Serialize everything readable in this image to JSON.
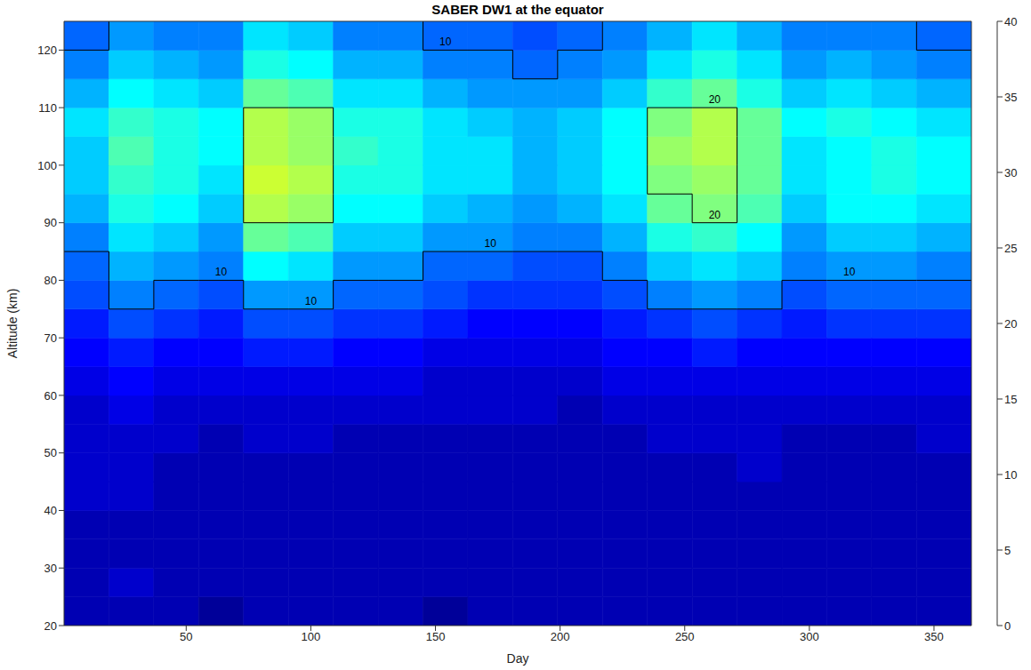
{
  "chart_data": {
    "type": "heatmap",
    "title": "SABER DW1 at the equator",
    "x_label": "Day",
    "y_label": "Altitude (km)",
    "xlim": [
      1,
      365
    ],
    "xticks": [
      50,
      100,
      150,
      200,
      250,
      300,
      350
    ],
    "ylim": [
      20,
      125
    ],
    "yticks": [
      20,
      30,
      40,
      50,
      60,
      70,
      80,
      90,
      100,
      110,
      120
    ],
    "x_edges": [
      1,
      19,
      37,
      55,
      73,
      91,
      109,
      127,
      145,
      163,
      181,
      199,
      217,
      235,
      253,
      271,
      289,
      307,
      325,
      343,
      365
    ],
    "y_edges": [
      20,
      25,
      30,
      35,
      40,
      45,
      50,
      55,
      60,
      65,
      70,
      75,
      80,
      85,
      90,
      95,
      100,
      105,
      110,
      115,
      120,
      125
    ],
    "values": [
      [
        2,
        2,
        2,
        1,
        2,
        2,
        2,
        2,
        1,
        2,
        2,
        2,
        2,
        2,
        2,
        2,
        2,
        2,
        2,
        2
      ],
      [
        2,
        3,
        2,
        2,
        2,
        2,
        2,
        2,
        2,
        2,
        2,
        2,
        2,
        2,
        2,
        2,
        2,
        2,
        2,
        2
      ],
      [
        2,
        2,
        2,
        2,
        2,
        2,
        2,
        2,
        2,
        2,
        2,
        2,
        2,
        2,
        2,
        2,
        2,
        2,
        2,
        2
      ],
      [
        2,
        2,
        2,
        2,
        2,
        2,
        2,
        2,
        2,
        2,
        2,
        2,
        2,
        2,
        2,
        2,
        2,
        2,
        2,
        2
      ],
      [
        3,
        3,
        2,
        2,
        2,
        2,
        2,
        2,
        2,
        2,
        2,
        2,
        2,
        2,
        2,
        2,
        2,
        2,
        2,
        2
      ],
      [
        3,
        3,
        2,
        2,
        2,
        2,
        2,
        2,
        2,
        2,
        2,
        2,
        2,
        2,
        2,
        3,
        2,
        2,
        2,
        2
      ],
      [
        3,
        3,
        3,
        2,
        3,
        3,
        2,
        2,
        2,
        2,
        2,
        2,
        2,
        3,
        3,
        3,
        2,
        2,
        2,
        3
      ],
      [
        3,
        4,
        3,
        3,
        3,
        3,
        3,
        3,
        3,
        3,
        3,
        2,
        3,
        3,
        3,
        3,
        3,
        3,
        3,
        3
      ],
      [
        4,
        5,
        4,
        4,
        4,
        4,
        4,
        4,
        3,
        3,
        3,
        3,
        4,
        4,
        4,
        4,
        4,
        4,
        4,
        4
      ],
      [
        5,
        6,
        5,
        5,
        6,
        6,
        5,
        5,
        4,
        4,
        4,
        4,
        5,
        5,
        6,
        5,
        5,
        5,
        5,
        5
      ],
      [
        6,
        8,
        7,
        6,
        8,
        8,
        7,
        7,
        6,
        5,
        5,
        5,
        6,
        7,
        8,
        7,
        6,
        7,
        7,
        7
      ],
      [
        8,
        10,
        9,
        8,
        11,
        11,
        9,
        9,
        8,
        7,
        7,
        7,
        8,
        10,
        11,
        10,
        8,
        9,
        9,
        9
      ],
      [
        9,
        12,
        11,
        10,
        15,
        14,
        11,
        11,
        9,
        9,
        8,
        8,
        10,
        13,
        14,
        13,
        10,
        11,
        11,
        10
      ],
      [
        10,
        14,
        13,
        11,
        19,
        18,
        13,
        13,
        11,
        11,
        10,
        10,
        12,
        16,
        17,
        15,
        11,
        13,
        13,
        12
      ],
      [
        12,
        16,
        15,
        13,
        22,
        21,
        15,
        15,
        13,
        12,
        11,
        12,
        14,
        19,
        20,
        18,
        13,
        15,
        15,
        14
      ],
      [
        13,
        17,
        16,
        14,
        23,
        22,
        16,
        16,
        14,
        14,
        12,
        13,
        15,
        20,
        21,
        19,
        14,
        15,
        16,
        15
      ],
      [
        13,
        18,
        16,
        15,
        22,
        21,
        17,
        16,
        14,
        14,
        12,
        13,
        15,
        21,
        22,
        19,
        14,
        15,
        16,
        15
      ],
      [
        14,
        17,
        16,
        15,
        22,
        21,
        16,
        16,
        14,
        13,
        12,
        13,
        15,
        20,
        22,
        19,
        15,
        16,
        15,
        14
      ],
      [
        12,
        15,
        14,
        13,
        19,
        18,
        14,
        14,
        12,
        11,
        11,
        11,
        13,
        17,
        19,
        16,
        13,
        14,
        13,
        12
      ],
      [
        10,
        13,
        12,
        11,
        16,
        15,
        12,
        12,
        10,
        10,
        9,
        10,
        11,
        14,
        16,
        14,
        11,
        12,
        11,
        10
      ],
      [
        9,
        11,
        10,
        10,
        14,
        13,
        10,
        10,
        9,
        9,
        8,
        9,
        10,
        12,
        14,
        12,
        10,
        10,
        10,
        9
      ]
    ],
    "colorbar_lim": [
      0,
      40
    ],
    "colorbar_ticks": [
      0,
      5,
      10,
      15,
      20,
      25,
      30,
      35,
      40
    ],
    "contour_levels": [
      10,
      20
    ]
  }
}
